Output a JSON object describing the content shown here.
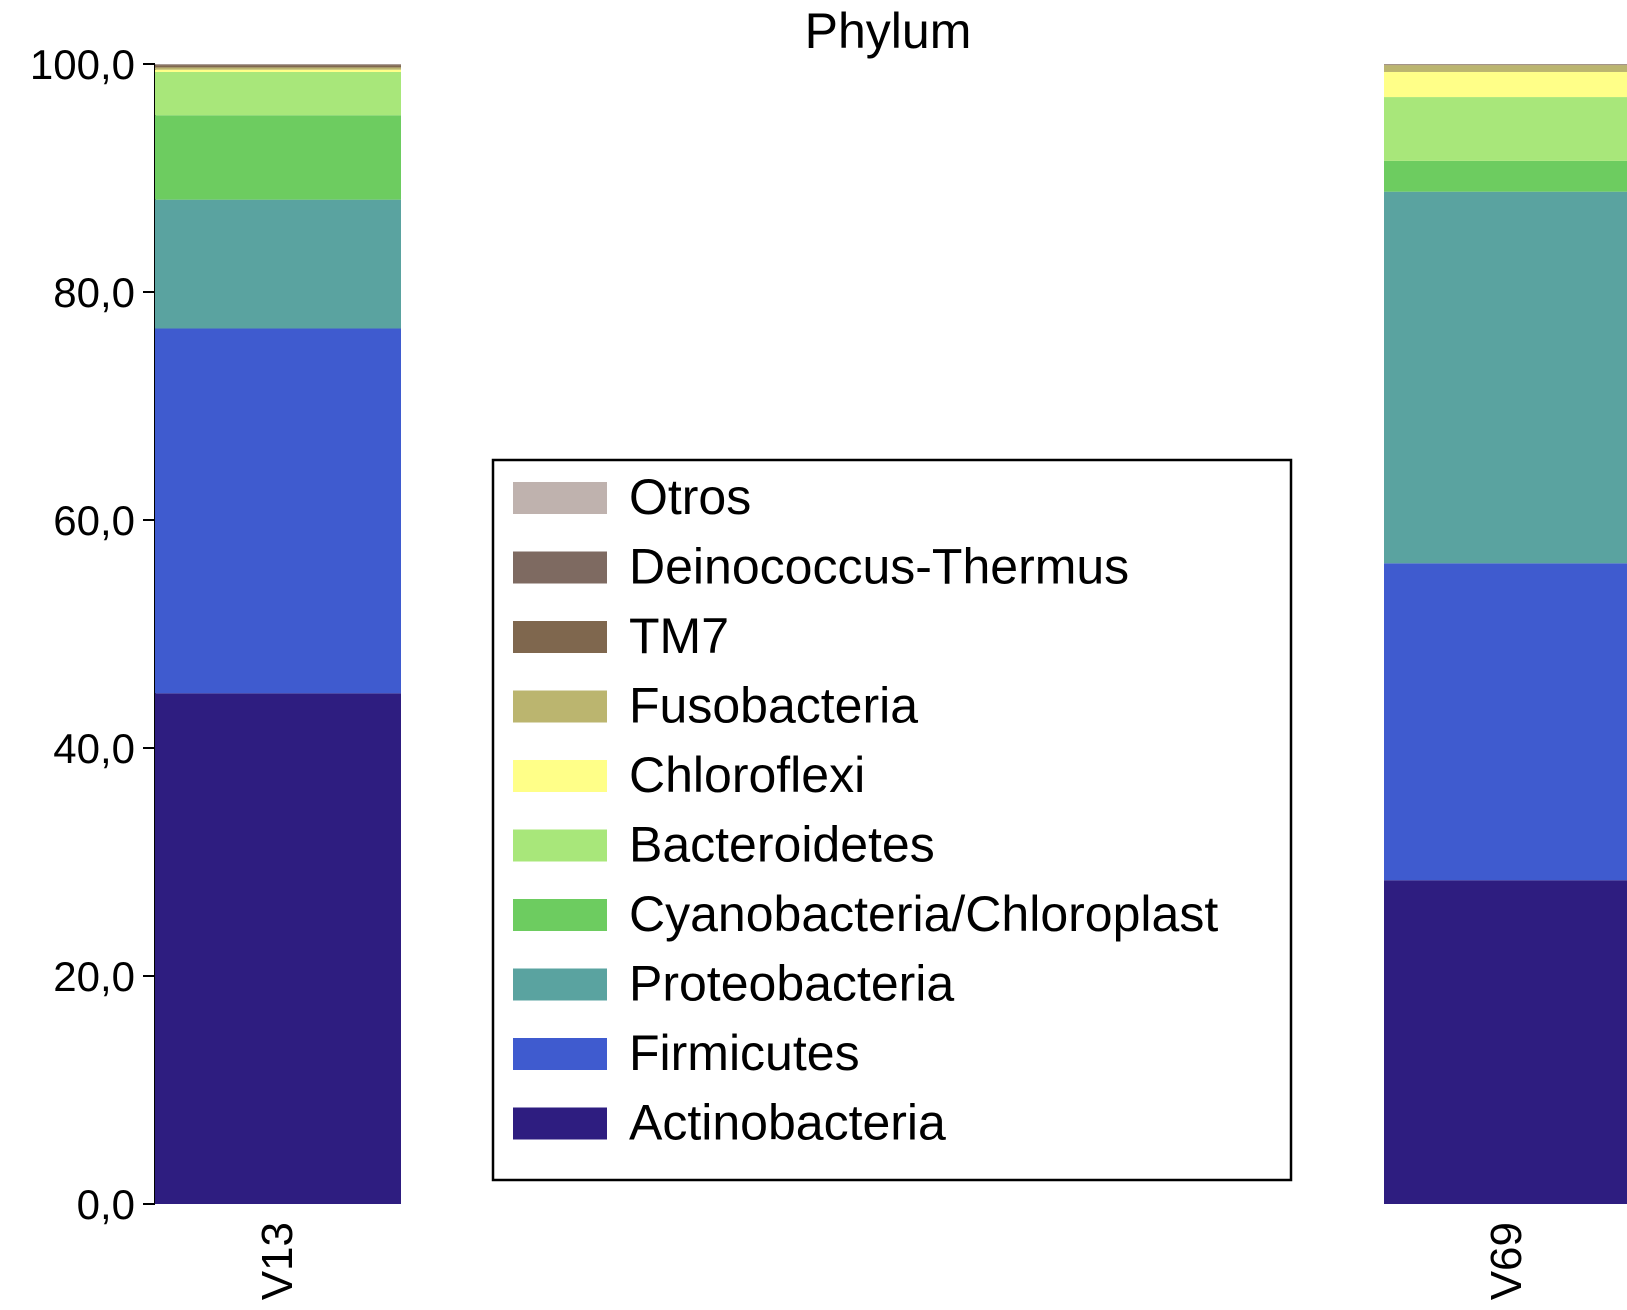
{
  "chart_data": {
    "type": "bar",
    "stacked": true,
    "title": "Phylum",
    "xlabel": "",
    "ylabel": "",
    "ylim": [
      0,
      100
    ],
    "yticks": [
      "0,0",
      "20,0",
      "40,0",
      "60,0",
      "80,0",
      "100,0"
    ],
    "ytick_values": [
      0,
      20,
      40,
      60,
      80,
      100
    ],
    "categories": [
      "V13",
      "V69"
    ],
    "legend_position": "center",
    "series": [
      {
        "name": "Actinobacteria",
        "color": "#2e1d80",
        "values": [
          44.8,
          28.4
        ]
      },
      {
        "name": "Firmicutes",
        "color": "#3f5bcf",
        "values": [
          32.0,
          27.8
        ]
      },
      {
        "name": "Proteobacteria",
        "color": "#5aa3a0",
        "values": [
          11.3,
          32.6
        ]
      },
      {
        "name": "Cyanobacteria/Chloroplast",
        "color": "#6dcc60",
        "values": [
          7.4,
          2.7
        ]
      },
      {
        "name": "Bacteroidetes",
        "color": "#a8e77a",
        "values": [
          3.8,
          5.6
        ]
      },
      {
        "name": "Chloroflexi",
        "color": "#ffff88",
        "values": [
          0.2,
          2.2
        ]
      },
      {
        "name": "Fusobacteria",
        "color": "#bbb56f",
        "values": [
          0.2,
          0.6
        ]
      },
      {
        "name": "TM7",
        "color": "#7f674e",
        "values": [
          0.2,
          0.05
        ]
      },
      {
        "name": "Deinococcus-Thermus",
        "color": "#7e6a61",
        "values": [
          0.05,
          0.03
        ]
      },
      {
        "name": "Otros",
        "color": "#bfb2ae",
        "values": [
          0.05,
          0.02
        ]
      }
    ]
  }
}
